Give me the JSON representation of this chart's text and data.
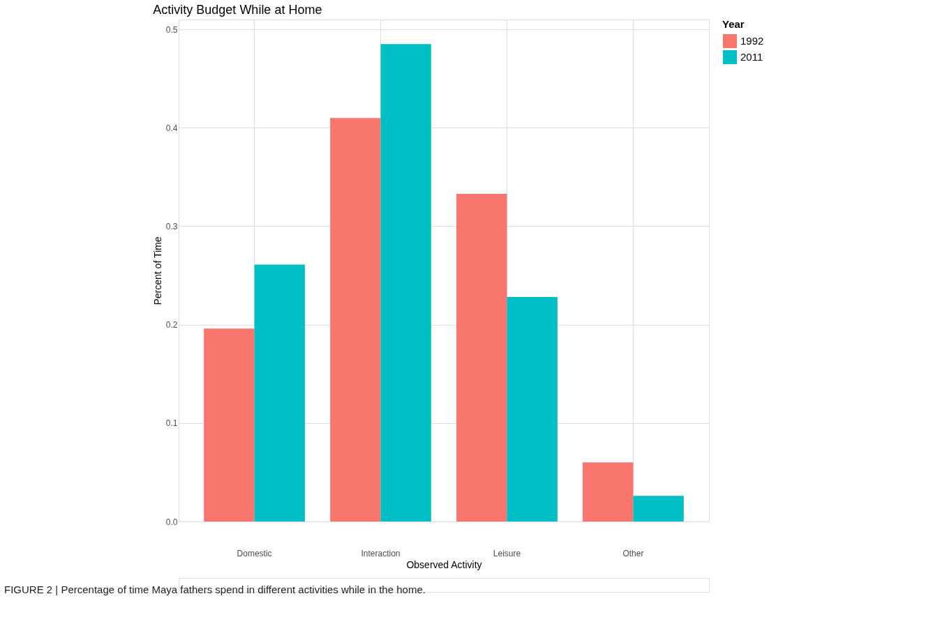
{
  "chart_data": {
    "type": "bar",
    "title": "Activity Budget While at Home",
    "xlabel": "Observed Activity",
    "ylabel": "Percent of Time",
    "legend_title": "Year",
    "categories": [
      "Domestic",
      "Interaction",
      "Leisure",
      "Other"
    ],
    "series": [
      {
        "name": "1992",
        "color": "#f8766d",
        "values": [
          0.196,
          0.41,
          0.333,
          0.06
        ]
      },
      {
        "name": "2011",
        "color": "#00bfc4",
        "values": [
          0.261,
          0.485,
          0.228,
          0.026
        ]
      }
    ],
    "ylim": [
      0,
      0.51
    ],
    "yticks": [
      {
        "value": 0,
        "label": "0.0"
      },
      0.1,
      0.2,
      0.3,
      0.4,
      0.5
    ],
    "grid": true,
    "legend": "right",
    "annotations": [
      "FIGURE 2 | Percentage of time Maya fathers spend in different activities while in the home."
    ]
  }
}
